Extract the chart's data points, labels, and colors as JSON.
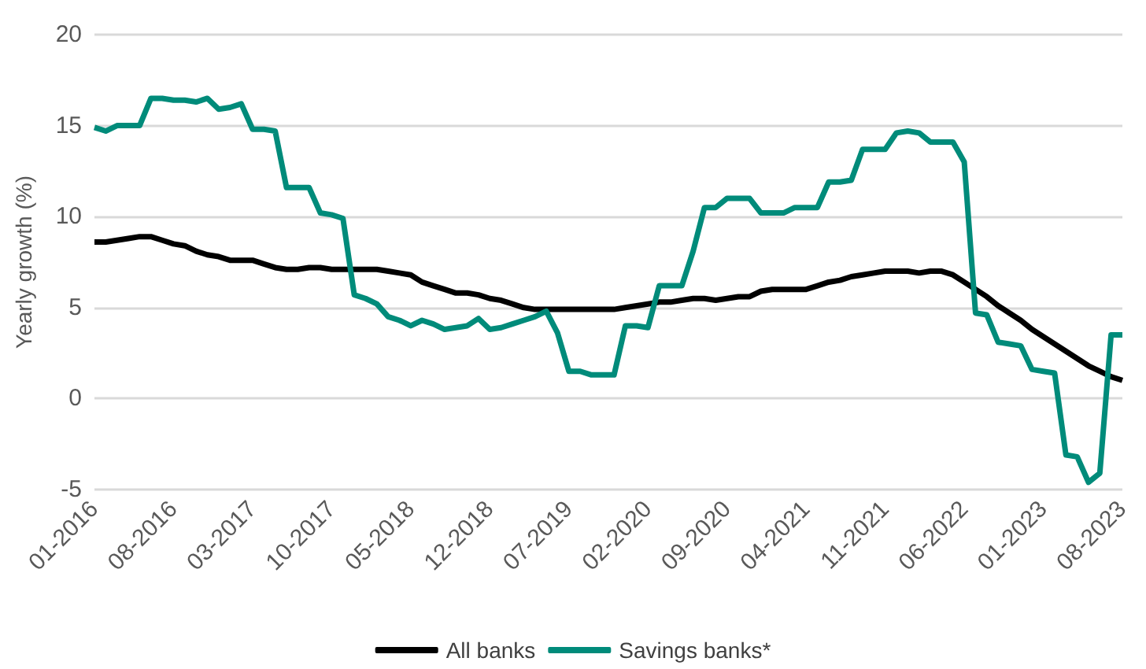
{
  "chart_data": {
    "type": "line",
    "ylabel": "Yearly growth (%)",
    "categories": [
      "01-2016",
      null,
      null,
      null,
      null,
      null,
      null,
      "08-2016",
      null,
      null,
      null,
      null,
      null,
      null,
      "03-2017",
      null,
      null,
      null,
      null,
      null,
      null,
      "10-2017",
      null,
      null,
      null,
      null,
      null,
      null,
      "05-2018",
      null,
      null,
      null,
      null,
      null,
      null,
      "12-2018",
      null,
      null,
      null,
      null,
      null,
      null,
      "07-2019",
      null,
      null,
      null,
      null,
      null,
      null,
      "02-2020",
      null,
      null,
      null,
      null,
      null,
      null,
      "09-2020",
      null,
      null,
      null,
      null,
      null,
      null,
      "04-2021",
      null,
      null,
      null,
      null,
      null,
      null,
      "11-2021",
      null,
      null,
      null,
      null,
      null,
      null,
      "06-2022",
      null,
      null,
      null,
      null,
      null,
      null,
      "01-2023",
      null,
      null,
      null,
      null,
      null,
      null,
      "08-2023"
    ],
    "series": [
      {
        "name": "All banks",
        "color": "#000000",
        "values": [
          8.6,
          8.6,
          8.7,
          8.8,
          8.9,
          8.9,
          8.7,
          8.5,
          8.4,
          8.1,
          7.9,
          7.8,
          7.6,
          7.6,
          7.6,
          7.4,
          7.2,
          7.1,
          7.1,
          7.2,
          7.2,
          7.1,
          7.1,
          7.1,
          7.1,
          7.1,
          7.0,
          6.9,
          6.8,
          6.4,
          6.2,
          6.0,
          5.8,
          5.8,
          5.7,
          5.5,
          5.4,
          5.2,
          5.0,
          4.9,
          4.9,
          4.9,
          4.9,
          4.9,
          4.9,
          4.9,
          4.9,
          5.0,
          5.1,
          5.2,
          5.3,
          5.3,
          5.4,
          5.5,
          5.5,
          5.4,
          5.5,
          5.6,
          5.6,
          5.9,
          6.0,
          6.0,
          6.0,
          6.0,
          6.2,
          6.4,
          6.5,
          6.7,
          6.8,
          6.9,
          7.0,
          7.0,
          7.0,
          6.9,
          7.0,
          7.0,
          6.8,
          6.4,
          6.0,
          5.6,
          5.1,
          4.7,
          4.3,
          3.8,
          3.4,
          3.0,
          2.6,
          2.2,
          1.8,
          1.5,
          1.2,
          1.0
        ]
      },
      {
        "name": "Savings banks*",
        "color": "#008b7a",
        "values": [
          14.9,
          14.7,
          15.0,
          15.0,
          15.0,
          16.5,
          16.5,
          16.4,
          16.4,
          16.3,
          16.5,
          15.9,
          16.0,
          16.2,
          14.8,
          14.8,
          14.7,
          11.6,
          11.6,
          11.6,
          10.2,
          10.1,
          9.9,
          5.7,
          5.5,
          5.2,
          4.5,
          4.3,
          4.0,
          4.3,
          4.1,
          3.8,
          3.9,
          4.0,
          4.4,
          3.8,
          3.9,
          4.1,
          4.3,
          4.5,
          4.8,
          3.6,
          1.5,
          1.5,
          1.3,
          1.3,
          1.3,
          4.0,
          4.0,
          3.9,
          6.2,
          6.2,
          6.2,
          8.1,
          10.5,
          10.5,
          11.0,
          11.0,
          11.0,
          10.2,
          10.2,
          10.2,
          10.5,
          10.5,
          10.5,
          11.9,
          11.9,
          12.0,
          13.7,
          13.7,
          13.7,
          14.6,
          14.7,
          14.6,
          14.1,
          14.1,
          14.1,
          13.0,
          4.7,
          4.6,
          3.1,
          3.0,
          2.9,
          1.6,
          1.5,
          1.4,
          -3.1,
          -3.2,
          -4.6,
          -4.1,
          3.5,
          3.5
        ]
      }
    ],
    "ylim": [
      -5,
      20
    ],
    "yticks": [
      -5,
      0,
      5,
      10,
      15,
      20
    ],
    "grid": "y",
    "legend": "bottom",
    "marker": "none",
    "line_style": "solid"
  }
}
